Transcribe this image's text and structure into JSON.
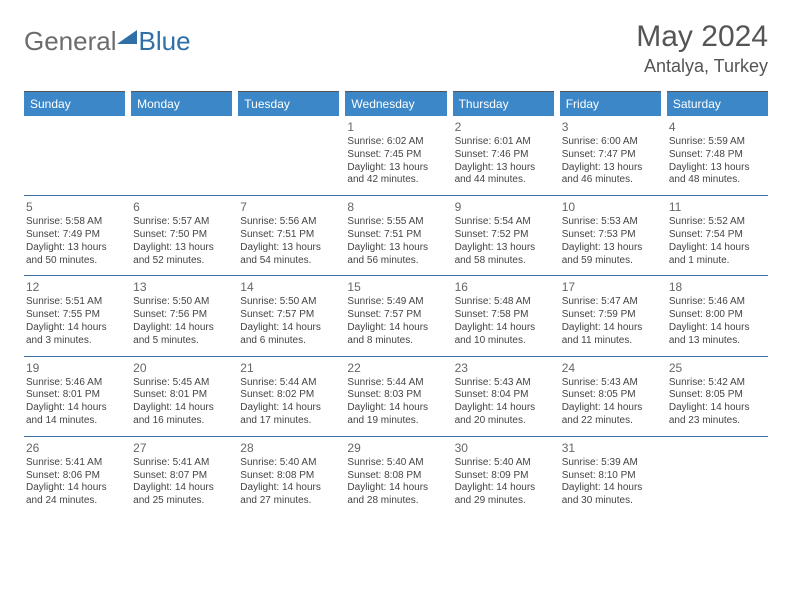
{
  "logo": {
    "general": "General",
    "blue": "Blue"
  },
  "title": "May 2024",
  "location": "Antalya, Turkey",
  "header_bg": "#3b87c8",
  "weekdays": [
    "Sunday",
    "Monday",
    "Tuesday",
    "Wednesday",
    "Thursday",
    "Friday",
    "Saturday"
  ],
  "weeks": [
    [
      null,
      null,
      null,
      {
        "day": "1",
        "sunrise": "Sunrise: 6:02 AM",
        "sunset": "Sunset: 7:45 PM",
        "daylight1": "Daylight: 13 hours",
        "daylight2": "and 42 minutes."
      },
      {
        "day": "2",
        "sunrise": "Sunrise: 6:01 AM",
        "sunset": "Sunset: 7:46 PM",
        "daylight1": "Daylight: 13 hours",
        "daylight2": "and 44 minutes."
      },
      {
        "day": "3",
        "sunrise": "Sunrise: 6:00 AM",
        "sunset": "Sunset: 7:47 PM",
        "daylight1": "Daylight: 13 hours",
        "daylight2": "and 46 minutes."
      },
      {
        "day": "4",
        "sunrise": "Sunrise: 5:59 AM",
        "sunset": "Sunset: 7:48 PM",
        "daylight1": "Daylight: 13 hours",
        "daylight2": "and 48 minutes."
      }
    ],
    [
      {
        "day": "5",
        "sunrise": "Sunrise: 5:58 AM",
        "sunset": "Sunset: 7:49 PM",
        "daylight1": "Daylight: 13 hours",
        "daylight2": "and 50 minutes."
      },
      {
        "day": "6",
        "sunrise": "Sunrise: 5:57 AM",
        "sunset": "Sunset: 7:50 PM",
        "daylight1": "Daylight: 13 hours",
        "daylight2": "and 52 minutes."
      },
      {
        "day": "7",
        "sunrise": "Sunrise: 5:56 AM",
        "sunset": "Sunset: 7:51 PM",
        "daylight1": "Daylight: 13 hours",
        "daylight2": "and 54 minutes."
      },
      {
        "day": "8",
        "sunrise": "Sunrise: 5:55 AM",
        "sunset": "Sunset: 7:51 PM",
        "daylight1": "Daylight: 13 hours",
        "daylight2": "and 56 minutes."
      },
      {
        "day": "9",
        "sunrise": "Sunrise: 5:54 AM",
        "sunset": "Sunset: 7:52 PM",
        "daylight1": "Daylight: 13 hours",
        "daylight2": "and 58 minutes."
      },
      {
        "day": "10",
        "sunrise": "Sunrise: 5:53 AM",
        "sunset": "Sunset: 7:53 PM",
        "daylight1": "Daylight: 13 hours",
        "daylight2": "and 59 minutes."
      },
      {
        "day": "11",
        "sunrise": "Sunrise: 5:52 AM",
        "sunset": "Sunset: 7:54 PM",
        "daylight1": "Daylight: 14 hours",
        "daylight2": "and 1 minute."
      }
    ],
    [
      {
        "day": "12",
        "sunrise": "Sunrise: 5:51 AM",
        "sunset": "Sunset: 7:55 PM",
        "daylight1": "Daylight: 14 hours",
        "daylight2": "and 3 minutes."
      },
      {
        "day": "13",
        "sunrise": "Sunrise: 5:50 AM",
        "sunset": "Sunset: 7:56 PM",
        "daylight1": "Daylight: 14 hours",
        "daylight2": "and 5 minutes."
      },
      {
        "day": "14",
        "sunrise": "Sunrise: 5:50 AM",
        "sunset": "Sunset: 7:57 PM",
        "daylight1": "Daylight: 14 hours",
        "daylight2": "and 6 minutes."
      },
      {
        "day": "15",
        "sunrise": "Sunrise: 5:49 AM",
        "sunset": "Sunset: 7:57 PM",
        "daylight1": "Daylight: 14 hours",
        "daylight2": "and 8 minutes."
      },
      {
        "day": "16",
        "sunrise": "Sunrise: 5:48 AM",
        "sunset": "Sunset: 7:58 PM",
        "daylight1": "Daylight: 14 hours",
        "daylight2": "and 10 minutes."
      },
      {
        "day": "17",
        "sunrise": "Sunrise: 5:47 AM",
        "sunset": "Sunset: 7:59 PM",
        "daylight1": "Daylight: 14 hours",
        "daylight2": "and 11 minutes."
      },
      {
        "day": "18",
        "sunrise": "Sunrise: 5:46 AM",
        "sunset": "Sunset: 8:00 PM",
        "daylight1": "Daylight: 14 hours",
        "daylight2": "and 13 minutes."
      }
    ],
    [
      {
        "day": "19",
        "sunrise": "Sunrise: 5:46 AM",
        "sunset": "Sunset: 8:01 PM",
        "daylight1": "Daylight: 14 hours",
        "daylight2": "and 14 minutes."
      },
      {
        "day": "20",
        "sunrise": "Sunrise: 5:45 AM",
        "sunset": "Sunset: 8:01 PM",
        "daylight1": "Daylight: 14 hours",
        "daylight2": "and 16 minutes."
      },
      {
        "day": "21",
        "sunrise": "Sunrise: 5:44 AM",
        "sunset": "Sunset: 8:02 PM",
        "daylight1": "Daylight: 14 hours",
        "daylight2": "and 17 minutes."
      },
      {
        "day": "22",
        "sunrise": "Sunrise: 5:44 AM",
        "sunset": "Sunset: 8:03 PM",
        "daylight1": "Daylight: 14 hours",
        "daylight2": "and 19 minutes."
      },
      {
        "day": "23",
        "sunrise": "Sunrise: 5:43 AM",
        "sunset": "Sunset: 8:04 PM",
        "daylight1": "Daylight: 14 hours",
        "daylight2": "and 20 minutes."
      },
      {
        "day": "24",
        "sunrise": "Sunrise: 5:43 AM",
        "sunset": "Sunset: 8:05 PM",
        "daylight1": "Daylight: 14 hours",
        "daylight2": "and 22 minutes."
      },
      {
        "day": "25",
        "sunrise": "Sunrise: 5:42 AM",
        "sunset": "Sunset: 8:05 PM",
        "daylight1": "Daylight: 14 hours",
        "daylight2": "and 23 minutes."
      }
    ],
    [
      {
        "day": "26",
        "sunrise": "Sunrise: 5:41 AM",
        "sunset": "Sunset: 8:06 PM",
        "daylight1": "Daylight: 14 hours",
        "daylight2": "and 24 minutes."
      },
      {
        "day": "27",
        "sunrise": "Sunrise: 5:41 AM",
        "sunset": "Sunset: 8:07 PM",
        "daylight1": "Daylight: 14 hours",
        "daylight2": "and 25 minutes."
      },
      {
        "day": "28",
        "sunrise": "Sunrise: 5:40 AM",
        "sunset": "Sunset: 8:08 PM",
        "daylight1": "Daylight: 14 hours",
        "daylight2": "and 27 minutes."
      },
      {
        "day": "29",
        "sunrise": "Sunrise: 5:40 AM",
        "sunset": "Sunset: 8:08 PM",
        "daylight1": "Daylight: 14 hours",
        "daylight2": "and 28 minutes."
      },
      {
        "day": "30",
        "sunrise": "Sunrise: 5:40 AM",
        "sunset": "Sunset: 8:09 PM",
        "daylight1": "Daylight: 14 hours",
        "daylight2": "and 29 minutes."
      },
      {
        "day": "31",
        "sunrise": "Sunrise: 5:39 AM",
        "sunset": "Sunset: 8:10 PM",
        "daylight1": "Daylight: 14 hours",
        "daylight2": "and 30 minutes."
      },
      null
    ]
  ]
}
